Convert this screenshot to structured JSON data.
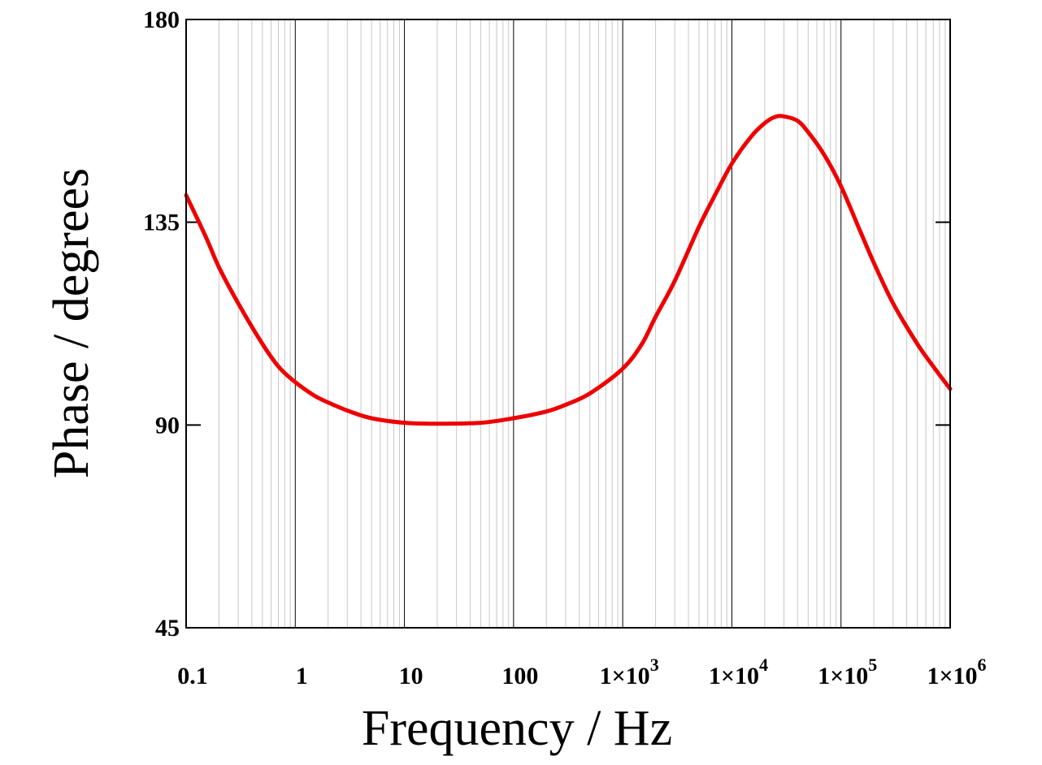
{
  "chart_data": {
    "type": "line",
    "title": "",
    "xlabel": "Frequency / Hz",
    "ylabel": "Phase / degrees",
    "x_scale": "log",
    "xlim": [
      0.1,
      1000000
    ],
    "ylim": [
      45,
      180
    ],
    "x_ticks": [
      {
        "value": 0.1,
        "label": "0.1",
        "exp": ""
      },
      {
        "value": 1,
        "label": "1",
        "exp": ""
      },
      {
        "value": 10,
        "label": "10",
        "exp": ""
      },
      {
        "value": 100,
        "label": "100",
        "exp": ""
      },
      {
        "value": 1000,
        "label": "1×10",
        "exp": "3"
      },
      {
        "value": 10000,
        "label": "1×10",
        "exp": "4"
      },
      {
        "value": 100000,
        "label": "1×10",
        "exp": "5"
      },
      {
        "value": 1000000,
        "label": "1×10",
        "exp": "6"
      }
    ],
    "y_ticks": [
      {
        "value": 45,
        "label": "45"
      },
      {
        "value": 90,
        "label": "90"
      },
      {
        "value": 135,
        "label": "135"
      },
      {
        "value": 180,
        "label": "180"
      }
    ],
    "grid": true,
    "legend": "none",
    "line_color": "#ee0000",
    "series": [
      {
        "x": [
          0.1,
          0.15,
          0.2,
          0.3,
          0.5,
          0.7,
          1,
          1.5,
          2,
          3,
          5,
          10,
          20,
          50,
          100,
          200,
          300,
          500,
          1000,
          1500,
          2000,
          3000,
          5000,
          7000,
          10000,
          15000,
          20000,
          25000,
          30000,
          40000,
          50000,
          70000,
          100000,
          150000,
          200000,
          300000,
          500000,
          700000,
          1000000
        ],
        "y": [
          141,
          132,
          125,
          117,
          108,
          103,
          99.5,
          96.5,
          95,
          93.2,
          91.5,
          90.5,
          90.3,
          90.5,
          91.5,
          93,
          94.5,
          97,
          102.5,
          108,
          114,
          122,
          134,
          141,
          148,
          154,
          157,
          158.4,
          158.5,
          157.5,
          155,
          150,
          143,
          133,
          126,
          117,
          108,
          103,
          98
        ]
      }
    ]
  }
}
